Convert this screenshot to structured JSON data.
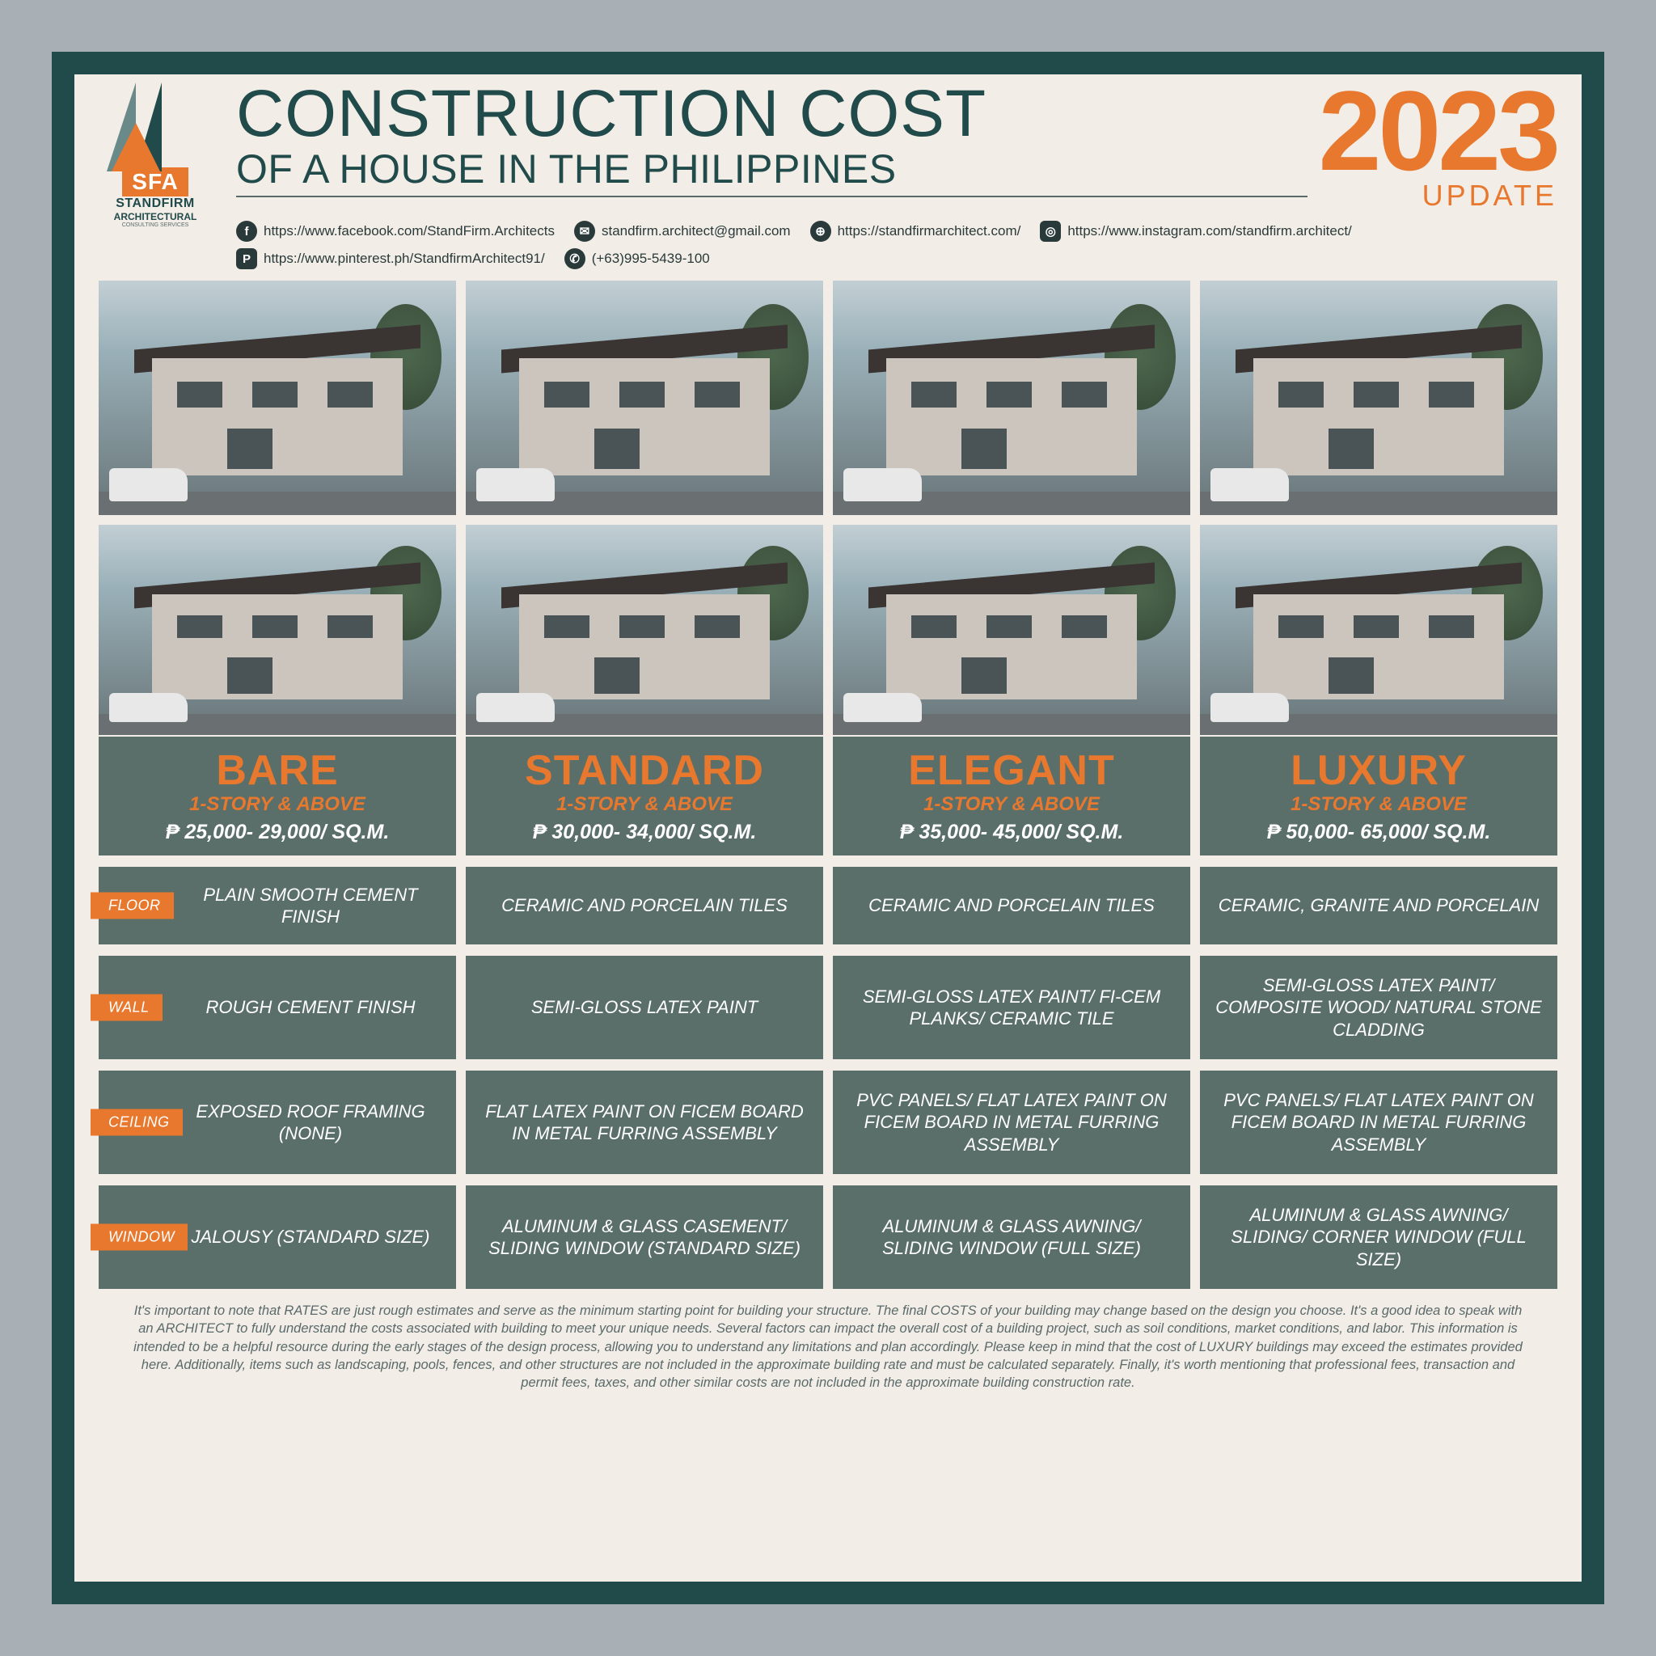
{
  "colors": {
    "frame": "#214a4a",
    "paper": "#f2ede7",
    "accent": "#e8782e",
    "cell": "#5a6f6a",
    "text_dark": "#214a4a"
  },
  "logo": {
    "badge": "SFA",
    "name": "STANDFIRM",
    "sub": "ARCHITECTURAL",
    "sub2": "CONSULTING SERVICES"
  },
  "title": {
    "line1": "CONSTRUCTION COST",
    "line2": "OF A HOUSE IN THE PHILIPPINES",
    "year": "2023",
    "update": "UPDATE"
  },
  "contacts": [
    {
      "icon": "f",
      "text": "https://www.facebook.com/StandFirm.Architects"
    },
    {
      "icon": "✉",
      "text": "standfirm.architect@gmail.com"
    },
    {
      "icon": "⊕",
      "text": "https://standfirmarchitect.com/"
    },
    {
      "icon": "◎",
      "text": "https://www.instagram.com/standfirm.architect/"
    },
    {
      "icon": "P",
      "text": "https://www.pinterest.ph/StandfirmArchitect91/"
    },
    {
      "icon": "✆",
      "text": "(+63)995-5439-100"
    }
  ],
  "tiers": [
    {
      "name": "BARE",
      "story": "1-STORY & ABOVE",
      "price": "₱ 25,000- 29,000/ SQ.M."
    },
    {
      "name": "STANDARD",
      "story": "1-STORY & ABOVE",
      "price": "₱ 30,000- 34,000/ SQ.M."
    },
    {
      "name": "ELEGANT",
      "story": "1-STORY & ABOVE",
      "price": "₱ 35,000- 45,000/ SQ.M."
    },
    {
      "name": "LUXURY",
      "story": "1-STORY & ABOVE",
      "price": "₱ 50,000- 65,000/ SQ.M."
    }
  ],
  "specs": [
    {
      "label": "FLOOR",
      "cells": [
        "PLAIN SMOOTH CEMENT FINISH",
        "CERAMIC AND PORCELAIN TILES",
        "CERAMIC AND PORCELAIN TILES",
        "CERAMIC, GRANITE AND PORCELAIN"
      ]
    },
    {
      "label": "WALL",
      "cells": [
        "ROUGH CEMENT FINISH",
        "SEMI-GLOSS LATEX PAINT",
        "SEMI-GLOSS LATEX PAINT/ FI-CEM PLANKS/ CERAMIC TILE",
        "SEMI-GLOSS LATEX PAINT/ COMPOSITE WOOD/ NATURAL STONE CLADDING"
      ]
    },
    {
      "label": "CEILING",
      "cells": [
        "EXPOSED ROOF FRAMING (NONE)",
        "FLAT LATEX PAINT ON FICEM BOARD IN METAL FURRING ASSEMBLY",
        "PVC PANELS/ FLAT LATEX PAINT ON FICEM BOARD IN METAL FURRING ASSEMBLY",
        "PVC PANELS/ FLAT LATEX PAINT ON FICEM BOARD IN METAL FURRING ASSEMBLY"
      ]
    },
    {
      "label": "WINDOW",
      "cells": [
        "JALOUSY (STANDARD SIZE)",
        "ALUMINUM & GLASS CASEMENT/ SLIDING WINDOW (STANDARD SIZE)",
        "ALUMINUM & GLASS AWNING/ SLIDING WINDOW (FULL SIZE)",
        "ALUMINUM & GLASS AWNING/ SLIDING/ CORNER WINDOW (FULL SIZE)"
      ]
    }
  ],
  "disclaimer": "It's important to note that RATES are just rough estimates and serve as the minimum starting point for building your structure. The final COSTS of your building may change based on the design you choose. It's a good idea to speak with an ARCHITECT to fully understand the costs associated with building to meet your unique needs. Several factors can impact the overall cost of a building project, such as soil conditions, market conditions, and labor. This information is intended to be a helpful resource during the early stages of the design process, allowing you to understand any limitations and plan accordingly. Please keep in mind that the cost of LUXURY buildings may exceed the estimates provided here. Additionally, items such as landscaping, pools, fences, and other structures are not included in the approximate building rate and must be calculated separately. Finally, it's worth mentioning that professional fees, transaction and permit fees, taxes, and other similar costs are not included in the approximate building construction rate."
}
